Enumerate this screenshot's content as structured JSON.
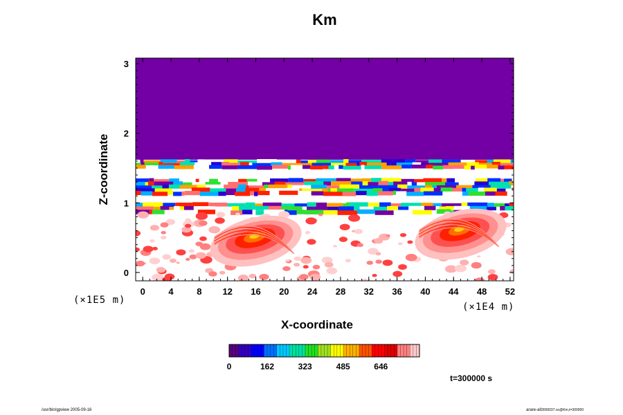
{
  "chart_data": {
    "type": "heatmap",
    "title": "Km",
    "xlabel": "X-coordinate",
    "ylabel": "Z-coordinate",
    "x_scale_label": "(×1E4 m)",
    "y_scale_label": "(×1E5 m)",
    "xlim": [
      -1,
      52.5
    ],
    "ylim": [
      -0.12,
      3.08
    ],
    "x_ticks": [
      0,
      4,
      8,
      12,
      16,
      20,
      24,
      28,
      32,
      36,
      40,
      44,
      48,
      52
    ],
    "y_ticks": [
      0,
      1,
      2,
      3
    ],
    "colorbar": {
      "ticks": [
        "0",
        "162",
        "323",
        "485",
        "646"
      ],
      "range": [
        0,
        810
      ],
      "colors": [
        "#5a0080",
        "#3300c0",
        "#0000ff",
        "#0070ff",
        "#00c8ff",
        "#00e0a0",
        "#20e020",
        "#a0e020",
        "#ffff00",
        "#ffb000",
        "#ff5000",
        "#ff0000",
        "#e00000",
        "#ff8080",
        "#ffc8c8"
      ]
    },
    "background_value_region": {
      "z_above": 1.65,
      "value": 0,
      "color": "#7200a4"
    },
    "bands": [
      {
        "z_from": 1.5,
        "z_to": 1.62,
        "description": "multicolor turbulent band"
      },
      {
        "z_from": 1.12,
        "z_to": 1.35,
        "description": "multicolor turbulent band"
      },
      {
        "z_from": 0.85,
        "z_to": 1.0,
        "description": "multicolor turbulent band"
      }
    ],
    "plumes": [
      {
        "x_center": 16,
        "z_center": 0.45,
        "peak": 700
      },
      {
        "x_center": 45,
        "z_center": 0.55,
        "peak": 780
      }
    ],
    "time_label": "t=300000 s"
  },
  "footer": {
    "left": "/usr/bin/gpview 2005-09-16",
    "right": "arare-all",
    "right_sub": "3000037.nc@Km,t=300000"
  }
}
